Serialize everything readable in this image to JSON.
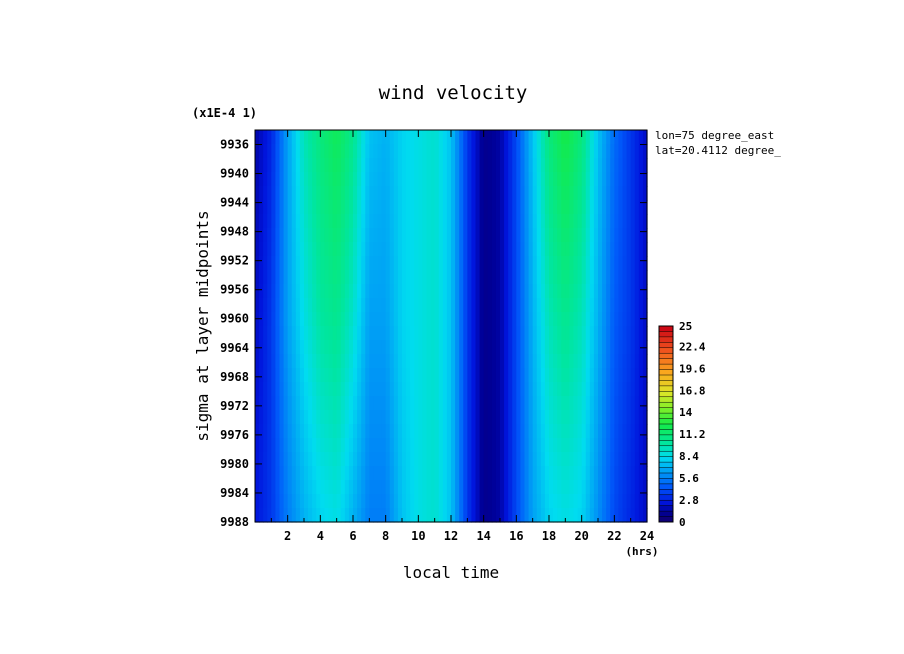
{
  "chart_data": {
    "type": "heatmap",
    "title": "wind velocity",
    "xlabel": "local time",
    "x_unit": "(hrs)",
    "ylabel": "sigma at layer midpoints",
    "y_scale_note": "(x1E-4 1)",
    "annotations": [
      "lon=75 degree_east",
      "lat=20.4112 degree_"
    ],
    "xlim": [
      0,
      24
    ],
    "ylim": [
      9988,
      9934
    ],
    "x_ticks": [
      "2",
      "4",
      "6",
      "8",
      "10",
      "12",
      "14",
      "16",
      "18",
      "20",
      "22",
      "24"
    ],
    "y_ticks": [
      "9936",
      "9940",
      "9944",
      "9948",
      "9952",
      "9956",
      "9960",
      "9964",
      "9968",
      "9972",
      "9976",
      "9980",
      "9984",
      "9988"
    ],
    "colorbar": {
      "ticks": [
        "25",
        "22.4",
        "19.6",
        "16.8",
        "14",
        "11.2",
        "8.4",
        "5.6",
        "2.8",
        "0"
      ],
      "min": 0,
      "max": 25
    },
    "x": [
      0,
      1,
      2,
      3,
      4,
      5,
      6,
      7,
      8,
      9,
      10,
      11,
      12,
      13,
      14,
      15,
      16,
      17,
      18,
      19,
      20,
      21,
      22,
      23,
      24
    ],
    "y": [
      9934,
      9960,
      9988
    ],
    "values": [
      [
        1.5,
        3.0,
        6.5,
        9.5,
        11.0,
        12.0,
        10.5,
        7.5,
        7.0,
        8.0,
        8.5,
        9.0,
        7.5,
        3.5,
        1.0,
        1.5,
        4.0,
        7.5,
        11.0,
        12.5,
        11.0,
        7.5,
        5.0,
        3.5,
        2.0
      ],
      [
        2.0,
        3.5,
        6.5,
        8.5,
        10.0,
        10.5,
        9.0,
        6.5,
        6.5,
        8.0,
        8.5,
        9.0,
        7.5,
        3.5,
        1.0,
        1.5,
        4.0,
        7.0,
        9.5,
        10.5,
        9.5,
        7.0,
        4.5,
        3.5,
        2.0
      ],
      [
        2.5,
        3.5,
        5.5,
        7.0,
        8.0,
        8.5,
        7.0,
        5.5,
        5.5,
        7.5,
        8.5,
        9.0,
        7.5,
        3.5,
        1.0,
        1.5,
        4.0,
        6.5,
        8.0,
        8.5,
        8.0,
        6.0,
        4.0,
        3.0,
        2.0
      ]
    ]
  }
}
